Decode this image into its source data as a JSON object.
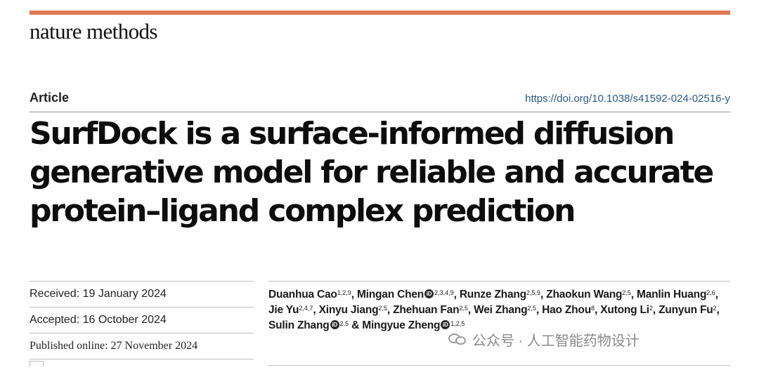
{
  "journal": "nature methods",
  "article_type": "Article",
  "doi": "https://doi.org/10.1038/s41592-024-02516-y",
  "title": "SurfDock is a surface-informed diffusion generative model for reliable and accurate protein–ligand complex prediction",
  "dates": {
    "received": "Received: 19 January 2024",
    "accepted": "Accepted: 16 October 2024",
    "published": "Published online: 27 November 2024"
  },
  "authors": [
    {
      "name": "Duanhua Cao",
      "aff": "1,2,9",
      "orcid": false
    },
    {
      "name": "Mingan Chen",
      "aff": "2,3,4,9",
      "orcid": true
    },
    {
      "name": "Runze Zhang",
      "aff": "2,5,9",
      "orcid": false
    },
    {
      "name": "Zhaokun Wang",
      "aff": "2,5",
      "orcid": false
    },
    {
      "name": "Manlin Huang",
      "aff": "2,6",
      "orcid": false
    },
    {
      "name": "Jie Yu",
      "aff": "2,4,7",
      "orcid": false
    },
    {
      "name": "Xinyu Jiang",
      "aff": "2,5",
      "orcid": false
    },
    {
      "name": "Zhehuan Fan",
      "aff": "2,5",
      "orcid": false
    },
    {
      "name": "Wei Zhang",
      "aff": "2,5",
      "orcid": false
    },
    {
      "name": "Hao Zhou",
      "aff": "8",
      "orcid": false
    },
    {
      "name": "Xutong Li",
      "aff": "2",
      "orcid": false
    },
    {
      "name": "Zunyun Fu",
      "aff": "2",
      "orcid": false
    },
    {
      "name": "Sulin Zhang",
      "aff": "2,5",
      "orcid": true
    },
    {
      "name": "Mingyue Zheng",
      "aff": "1,2,5",
      "orcid": true
    }
  ],
  "orcid_glyph": "iD",
  "watermark": "公众号 · 人工智能药物设计",
  "colors": {
    "accent_bar": "#e07a52",
    "doi_link": "#2a5a8a"
  }
}
